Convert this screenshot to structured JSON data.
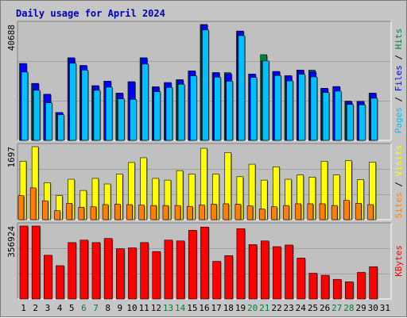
{
  "title": "Daily usage for April 2024",
  "colors": {
    "hits": "#008040",
    "files": "#0000ff",
    "pages": "#00c0ff",
    "visits": "#ffff00",
    "sites": "#ff8000",
    "kbytes": "#ff0000",
    "weekend_label": "#008040",
    "separator": "#000000"
  },
  "chart_data": [
    {
      "type": "bar",
      "name_panel": "hits-files-pages",
      "ymax_label": "40688",
      "ylim": [
        0,
        40688
      ],
      "categories": [
        "1",
        "2",
        "3",
        "4",
        "5",
        "6",
        "7",
        "8",
        "9",
        "10",
        "11",
        "12",
        "13",
        "14",
        "15",
        "16",
        "17",
        "18",
        "19",
        "20",
        "21",
        "22",
        "23",
        "24",
        "25",
        "26",
        "27",
        "28",
        "29",
        "30",
        "31"
      ],
      "weekend": [
        "6",
        "7",
        "13",
        "14",
        "20",
        "21",
        "27",
        "28"
      ],
      "series": [
        {
          "name": "Hits",
          "values": [
            27000,
            20000,
            16200,
            9800,
            29000,
            26300,
            19200,
            20800,
            16600,
            20600,
            29000,
            18800,
            20300,
            21300,
            24400,
            40688,
            23800,
            23800,
            38400,
            23300,
            30100,
            24200,
            22700,
            24700,
            24700,
            18300,
            18900,
            13800,
            13700,
            16600,
            0
          ]
        },
        {
          "name": "Files",
          "values": [
            27000,
            20000,
            16200,
            9800,
            29000,
            26300,
            19200,
            20800,
            16600,
            20600,
            29000,
            18800,
            20300,
            21300,
            24400,
            40688,
            23800,
            23400,
            38400,
            23300,
            27900,
            24200,
            22700,
            24700,
            24100,
            18300,
            18900,
            13600,
            13700,
            16600,
            0
          ]
        },
        {
          "name": "Pages",
          "values": [
            24000,
            17600,
            13200,
            9000,
            27100,
            24700,
            17600,
            18700,
            14600,
            14400,
            26800,
            17100,
            18600,
            19700,
            22700,
            38800,
            22200,
            20800,
            36800,
            22100,
            27900,
            22800,
            20900,
            23200,
            22300,
            16800,
            17300,
            12600,
            12500,
            14800,
            0
          ]
        }
      ],
      "right_labels": [
        {
          "text": "Pages",
          "color_key": "pages"
        },
        {
          "text": "Files",
          "color_key": "files"
        },
        {
          "text": "Hits",
          "color_key": "hits"
        }
      ]
    },
    {
      "type": "bar",
      "name_panel": "visits-sites",
      "ymax_label": "1697",
      "ylim": [
        0,
        1697
      ],
      "categories": [
        "1",
        "2",
        "3",
        "4",
        "5",
        "6",
        "7",
        "8",
        "9",
        "10",
        "11",
        "12",
        "13",
        "14",
        "15",
        "16",
        "17",
        "18",
        "19",
        "20",
        "21",
        "22",
        "23",
        "24",
        "25",
        "26",
        "27",
        "28",
        "29",
        "30",
        "31"
      ],
      "series": [
        {
          "name": "Visits",
          "values": [
            1360,
            1697,
            860,
            560,
            940,
            680,
            960,
            830,
            1060,
            1330,
            1440,
            960,
            920,
            1140,
            1060,
            1660,
            1060,
            1560,
            1000,
            1290,
            920,
            1230,
            940,
            1040,
            990,
            1360,
            1040,
            1370,
            930,
            1340,
            0
          ]
        },
        {
          "name": "Sites",
          "values": [
            560,
            740,
            440,
            210,
            380,
            290,
            300,
            350,
            360,
            350,
            340,
            330,
            330,
            330,
            310,
            340,
            360,
            370,
            360,
            320,
            250,
            300,
            330,
            370,
            370,
            370,
            330,
            450,
            380,
            350,
            0
          ]
        }
      ],
      "right_labels": [
        {
          "text": "Sites",
          "color_key": "sites"
        },
        {
          "text": "Visits",
          "color_key": "visits"
        }
      ]
    },
    {
      "type": "bar",
      "name_panel": "kbytes",
      "ymax_label": "356924",
      "ylim": [
        0,
        356924
      ],
      "categories": [
        "1",
        "2",
        "3",
        "4",
        "5",
        "6",
        "7",
        "8",
        "9",
        "10",
        "11",
        "12",
        "13",
        "14",
        "15",
        "16",
        "17",
        "18",
        "19",
        "20",
        "21",
        "22",
        "23",
        "24",
        "25",
        "26",
        "27",
        "28",
        "29",
        "30",
        "31"
      ],
      "series": [
        {
          "name": "KBytes",
          "values": [
            356924,
            356924,
            214000,
            163000,
            276000,
            288000,
            276000,
            296000,
            246000,
            250000,
            276000,
            232000,
            288000,
            284000,
            336000,
            352000,
            184000,
            212000,
            344000,
            266000,
            284000,
            256000,
            264000,
            200000,
            126000,
            116000,
            96000,
            84000,
            130000,
            158000,
            0
          ]
        }
      ],
      "right_labels": [
        {
          "text": "KBytes",
          "color_key": "kbytes"
        }
      ]
    }
  ]
}
